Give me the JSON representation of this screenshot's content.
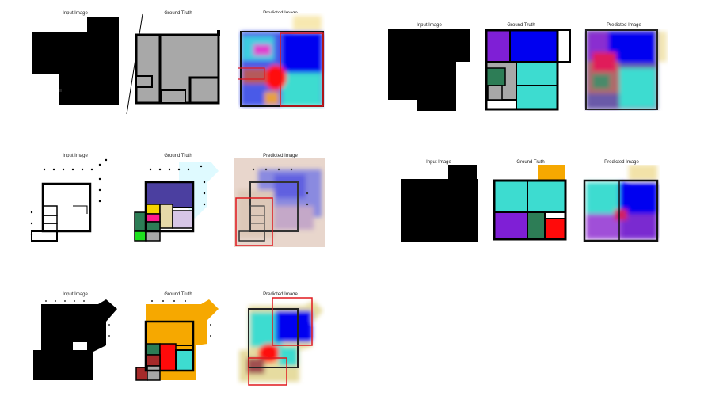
{
  "labels": {
    "input": "Input Image",
    "ground_truth": "Ground Truth",
    "predicted": "Predicted Image"
  },
  "colors": {
    "wall": "#000000",
    "room_gray": "#a8a8a8",
    "blue": "#0000f0",
    "purple": "#7f1fd6",
    "turquoise": "#3ddcd0",
    "red": "#ff0a0a",
    "orange": "#f6a800",
    "navy": "#4b3fa0",
    "yellow": "#f5d300",
    "magenta": "#ff1a8c",
    "green": "#2d7d56",
    "lime": "#1ee01e",
    "lavender": "#d6c6e6",
    "beige": "#e6d9a8",
    "maroon": "#a52a2a",
    "highlight_box": "#e0181e"
  }
}
